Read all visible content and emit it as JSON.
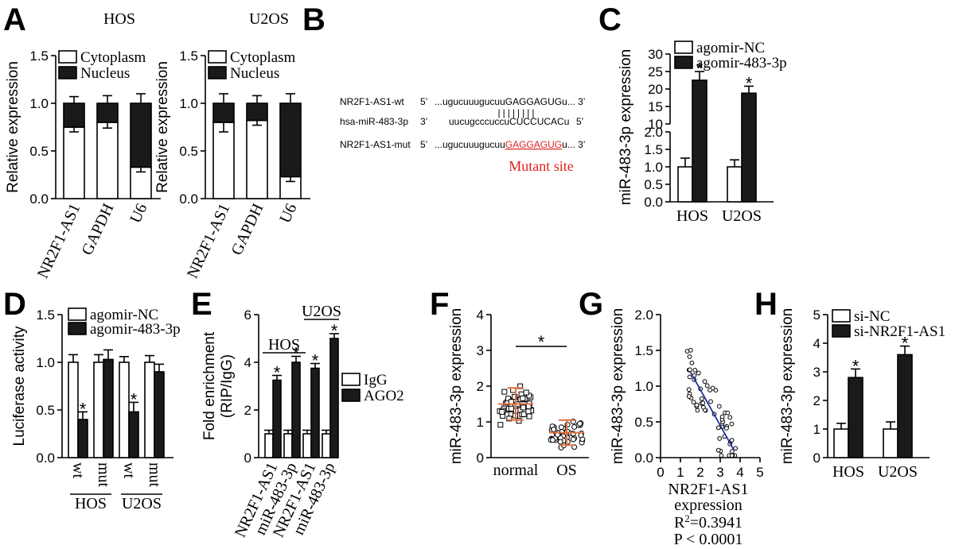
{
  "panels": {
    "A": "A",
    "B": "B",
    "C": "C",
    "D": "D",
    "E": "E",
    "F": "F",
    "G": "G",
    "H": "H"
  },
  "sequence": {
    "rows": [
      {
        "name": "NR2F1-AS1-wt",
        "end5": "5’",
        "pre": "...ugucuuugucuu",
        "core": "GAGGAGUG",
        "post": "u... 3’",
        "mutant": false
      },
      {
        "name": "hsa-miR-483-3p",
        "end5": "3’",
        "pre": "uucugcccuccu",
        "core": "CUCCUCAC",
        "post": "u",
        "end3": "5’",
        "mutant": false
      },
      {
        "name": "NR2F1-AS1-mut",
        "end5": "5’",
        "pre": "...ugucuuugucuu",
        "core": "GAGGAGUG",
        "post": "u... 3’",
        "mutant": true
      }
    ],
    "pairing_marks": "||||||||",
    "mutant_label": "Mutant site"
  },
  "chart_data": [
    {
      "id": "A-HOS",
      "type": "bar",
      "stacked": true,
      "title": "HOS",
      "ylabel": "Relative expression",
      "ylim": [
        0,
        1.5
      ],
      "yticks": [
        "0.0",
        "0.5",
        "1.0",
        "1.5"
      ],
      "categories": [
        "NR2F1-AS1",
        "GAPDH",
        "U6"
      ],
      "series": [
        {
          "name": "Cytoplasm",
          "values": [
            0.75,
            0.8,
            0.33
          ],
          "errors": [
            0.05,
            0.06,
            0.05
          ],
          "fill": "#ffffff"
        },
        {
          "name": "Nucleus",
          "values": [
            0.25,
            0.2,
            0.67
          ],
          "errors": [
            0.07,
            0.08,
            0.1
          ],
          "fill": "#1a1a1a"
        }
      ],
      "legend": "top"
    },
    {
      "id": "A-U2OS",
      "type": "bar",
      "stacked": true,
      "title": "U2OS",
      "ylabel": "Relative expression",
      "ylim": [
        0,
        1.5
      ],
      "yticks": [
        "0.0",
        "0.5",
        "1.0",
        "1.5"
      ],
      "categories": [
        "NR2F1-AS1",
        "GAPDH",
        "U6"
      ],
      "series": [
        {
          "name": "Cytoplasm",
          "values": [
            0.8,
            0.82,
            0.23
          ],
          "errors": [
            0.1,
            0.05,
            0.05
          ],
          "fill": "#ffffff"
        },
        {
          "name": "Nucleus",
          "values": [
            0.2,
            0.18,
            0.77
          ],
          "errors": [
            0.1,
            0.08,
            0.1
          ],
          "fill": "#1a1a1a"
        }
      ],
      "legend": "top"
    },
    {
      "id": "C",
      "type": "bar",
      "axis_break": [
        2,
        10
      ],
      "ylabel": "miR-483-3p expression",
      "yticks": [
        "0.0",
        "0.5",
        "1.0",
        "1.5",
        "2.0",
        "10",
        "15",
        "20",
        "25",
        "30"
      ],
      "categories": [
        "HOS",
        "U2OS"
      ],
      "series": [
        {
          "name": "agomir-NC",
          "values": [
            1.0,
            1.0
          ],
          "errors": [
            0.25,
            0.2
          ],
          "fill": "#ffffff"
        },
        {
          "name": "agomir-483-3p",
          "values": [
            22.5,
            18.8
          ],
          "errors": [
            2.5,
            2.0
          ],
          "fill": "#1a1a1a",
          "significant": [
            true,
            true
          ]
        }
      ],
      "significance_mark": "*",
      "legend": "top"
    },
    {
      "id": "D",
      "type": "bar",
      "ylabel": "Luciferase activity",
      "ylim": [
        0,
        1.5
      ],
      "yticks": [
        "0.0",
        "0.5",
        "1.0",
        "1.5"
      ],
      "categories": [
        "wt",
        "mut",
        "wt",
        "mut"
      ],
      "groups": [
        "HOS",
        "U2OS"
      ],
      "series": [
        {
          "name": "agomir-NC",
          "values": [
            1.0,
            1.0,
            1.0,
            1.0
          ],
          "errors": [
            0.08,
            0.08,
            0.06,
            0.07
          ],
          "fill": "#ffffff"
        },
        {
          "name": "agomir-483-3p",
          "values": [
            0.4,
            1.03,
            0.48,
            0.9
          ],
          "errors": [
            0.08,
            0.1,
            0.1,
            0.08
          ],
          "fill": "#1a1a1a",
          "significant": [
            true,
            false,
            true,
            false
          ]
        }
      ],
      "significance_mark": "*",
      "legend": "top"
    },
    {
      "id": "E",
      "type": "bar",
      "ylabel": "Fold enrichment\n(RIP/IgG)",
      "ylim": [
        0,
        6
      ],
      "yticks": [
        "0",
        "2",
        "4",
        "6"
      ],
      "categories": [
        "NR2F1-AS1",
        "miR-483-3p",
        "NR2F1-AS1",
        "miR-483-3p"
      ],
      "groups": [
        "HOS",
        "U2OS"
      ],
      "series": [
        {
          "name": "IgG",
          "values": [
            1.0,
            1.0,
            1.0,
            1.0
          ],
          "errors": [
            0.15,
            0.15,
            0.15,
            0.15
          ],
          "fill": "#ffffff"
        },
        {
          "name": "AGO2",
          "values": [
            3.25,
            4.0,
            3.75,
            5.0
          ],
          "errors": [
            0.2,
            0.25,
            0.2,
            0.2
          ],
          "fill": "#1a1a1a",
          "significant": [
            true,
            true,
            true,
            true
          ]
        }
      ],
      "significance_mark": "*",
      "legend": "right"
    },
    {
      "id": "F",
      "type": "scatter",
      "ylabel": "miR-483-3p expression",
      "ylim": [
        0,
        4
      ],
      "yticks": [
        "0",
        "1",
        "2",
        "3",
        "4"
      ],
      "categories": [
        "normal",
        "OS"
      ],
      "groups_summary": [
        {
          "name": "normal",
          "mean": 1.5,
          "sd": 0.45,
          "marker": "square"
        },
        {
          "name": "OS",
          "mean": 0.7,
          "sd": 0.35,
          "marker": "circle"
        }
      ],
      "significance_mark": "*"
    },
    {
      "id": "G",
      "type": "scatter",
      "ylabel": "miR-483-3p expression",
      "xlabel": "NR2F1-AS1\nexpression",
      "xlim": [
        0,
        5
      ],
      "ylim": [
        0,
        2.0
      ],
      "xticks": [
        "0",
        "1",
        "2",
        "3",
        "4",
        "5"
      ],
      "yticks": [
        "0.0",
        "0.5",
        "1.0",
        "1.5",
        "2.0"
      ],
      "fit_line": {
        "x": [
          1.5,
          3.7
        ],
        "y": [
          1.2,
          0.1
        ],
        "color": "#1f2f9f"
      },
      "r2_prefix": "R",
      "r2_sup": "2",
      "r2_value": "=0.3941",
      "p_text": "P < 0.0001"
    },
    {
      "id": "H",
      "type": "bar",
      "ylabel": "miR-483-3p expression",
      "ylim": [
        0,
        5
      ],
      "yticks": [
        "0",
        "1",
        "2",
        "3",
        "4",
        "5"
      ],
      "categories": [
        "HOS",
        "U2OS"
      ],
      "series": [
        {
          "name": "si-NC",
          "values": [
            1.0,
            1.0
          ],
          "errors": [
            0.2,
            0.25
          ],
          "fill": "#ffffff"
        },
        {
          "name": "si-NR2F1-AS1",
          "values": [
            2.8,
            3.6
          ],
          "errors": [
            0.3,
            0.3
          ],
          "fill": "#1a1a1a",
          "significant": [
            true,
            true
          ]
        }
      ],
      "significance_mark": "*",
      "legend": "top"
    }
  ]
}
